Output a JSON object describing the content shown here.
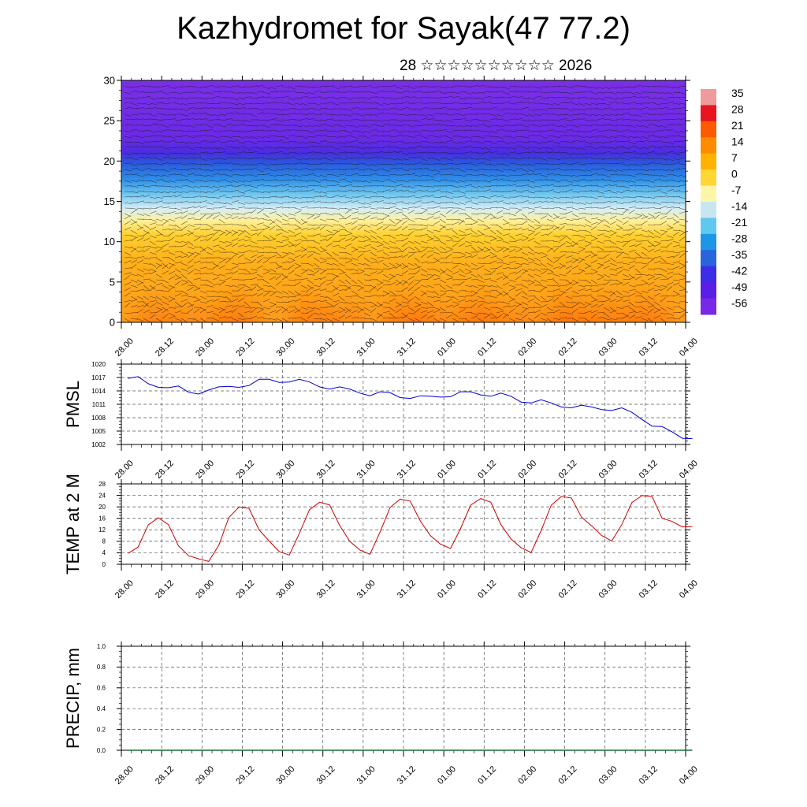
{
  "page": {
    "title": "Kazhydromet for Sayak(47 77.2)",
    "subtitle": "28 ☆☆☆☆☆☆☆☆☆☆ 2026"
  },
  "time_ticks": [
    "28.00",
    "28.12",
    "29.00",
    "29.12",
    "30.00",
    "30.12",
    "31.00",
    "31.12",
    "01.00",
    "01.12",
    "02.00",
    "02.12",
    "03.00",
    "03.12",
    "04.00"
  ],
  "chart_data": [
    {
      "type": "heatmap",
      "name": "cross-section",
      "y_ticks": [
        "0",
        "5",
        "10",
        "15",
        "20",
        "25",
        "30"
      ],
      "ylim": [
        0,
        31
      ],
      "colorbar": {
        "labels": [
          "35",
          "28",
          "21",
          "14",
          "7",
          "0",
          "-7",
          "-14",
          "-21",
          "-28",
          "-35",
          "-42",
          "-49",
          "-56"
        ],
        "colors": [
          "#ef9b9b",
          "#e8141e",
          "#ff5a00",
          "#ff8c00",
          "#ffb300",
          "#ffd633",
          "#fff5a6",
          "#c8e6f0",
          "#5fc8f0",
          "#1e96e6",
          "#2864dc",
          "#3c2de6",
          "#5a1ee6",
          "#7828e6"
        ]
      }
    },
    {
      "type": "line",
      "name": "pmsl",
      "ylabel": "PMSL",
      "ylim": [
        1002,
        1020
      ],
      "y_ticks": [
        "1002",
        "1005",
        "1008",
        "1011",
        "1014",
        "1017",
        "1020"
      ],
      "color": "#0000cc",
      "x": [
        0,
        3,
        6,
        9,
        12,
        15,
        18,
        21,
        24,
        27,
        30,
        33,
        36,
        39,
        42,
        45,
        48,
        51,
        54,
        57,
        60,
        63,
        66,
        69,
        72,
        75,
        78,
        81,
        84,
        87,
        90,
        93,
        96,
        99,
        102,
        105,
        108,
        111,
        114,
        117,
        120,
        123,
        126,
        129,
        132,
        135,
        138,
        141,
        144,
        147,
        150,
        153,
        156,
        159,
        162,
        165
      ],
      "values": [
        1016.8,
        1017.2,
        1015.6,
        1014.8,
        1014.7,
        1015.1,
        1013.7,
        1013.3,
        1014.2,
        1014.9,
        1015.0,
        1014.8,
        1015.2,
        1016.6,
        1016.6,
        1015.9,
        1016.0,
        1016.6,
        1016.0,
        1014.9,
        1014.4,
        1014.9,
        1014.4,
        1013.5,
        1012.9,
        1013.8,
        1013.6,
        1012.5,
        1012.3,
        1012.9,
        1012.8,
        1012.6,
        1012.7,
        1013.8,
        1013.8,
        1013.1,
        1012.8,
        1013.5,
        1012.8,
        1011.5,
        1011.3,
        1012.0,
        1011.3,
        1010.4,
        1010.2,
        1010.8,
        1010.4,
        1009.8,
        1009.6,
        1010.2,
        1009.2,
        1007.6,
        1006.1,
        1006.0,
        1004.8,
        1003.4
      ],
      "extra_x": [
        168
      ],
      "extra_values": [
        1003.3
      ]
    },
    {
      "type": "line",
      "name": "temp2m",
      "ylabel": "TEMP at 2 M",
      "ylim": [
        0,
        28
      ],
      "y_ticks": [
        "0",
        "4",
        "8",
        "12",
        "16",
        "20",
        "24",
        "28"
      ],
      "color": "#cc0000",
      "x": [
        0,
        3,
        6,
        9,
        12,
        15,
        18,
        21,
        24,
        27,
        30,
        33,
        36,
        39,
        42,
        45,
        48,
        51,
        54,
        57,
        60,
        63,
        66,
        69,
        72,
        75,
        78,
        81,
        84,
        87,
        90,
        93,
        96,
        99,
        102,
        105,
        108,
        111,
        114,
        117,
        120,
        123,
        126,
        129,
        132,
        135,
        138,
        141,
        144,
        147,
        150,
        153,
        156,
        159,
        162,
        165,
        168
      ],
      "values": [
        3.8,
        6.0,
        13.7,
        16.2,
        13.8,
        6.4,
        3.0,
        1.9,
        1.0,
        6.6,
        16.3,
        19.9,
        19.5,
        12.0,
        8.1,
        4.4,
        3.2,
        10.8,
        19.0,
        21.6,
        20.7,
        13.5,
        8.0,
        5.0,
        3.5,
        11.2,
        19.8,
        22.7,
        22.0,
        15.1,
        10.0,
        7.0,
        5.5,
        12.5,
        20.6,
        22.9,
        21.6,
        13.8,
        8.8,
        5.8,
        4.1,
        11.8,
        20.6,
        23.6,
        23.1,
        16.4,
        13.4,
        10.0,
        8.1,
        13.8,
        21.5,
        23.9,
        23.6,
        16.0,
        14.9,
        13.0,
        13.1
      ]
    },
    {
      "type": "line",
      "name": "precip",
      "ylabel": "PRECIP, mm",
      "ylim": [
        0,
        1.0
      ],
      "y_ticks": [
        "0.0",
        "0.2",
        "0.4",
        "0.6",
        "0.8",
        "1.0"
      ],
      "color": "#1a6e3a",
      "x": [
        0,
        168
      ],
      "values": [
        0,
        0
      ]
    }
  ]
}
